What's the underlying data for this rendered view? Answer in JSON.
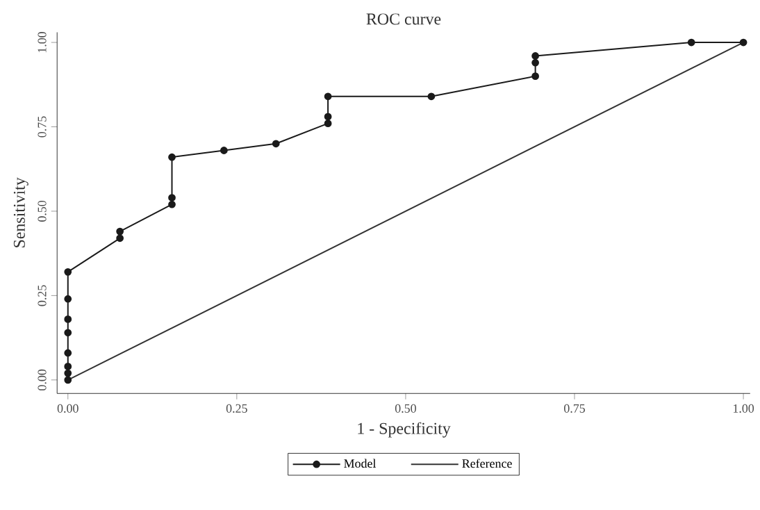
{
  "chart_data": {
    "type": "line",
    "title": "ROC curve",
    "xlabel": "1 - Specificity",
    "ylabel": "Sensitivity",
    "xlim": [
      -0.016,
      1.01
    ],
    "ylim": [
      -0.04,
      1.03
    ],
    "xticks": [
      {
        "value": 0,
        "label": "0.00"
      },
      {
        "value": 0.25,
        "label": "0.25"
      },
      {
        "value": 0.5,
        "label": "0.50"
      },
      {
        "value": 0.75,
        "label": "0.75"
      },
      {
        "value": 1,
        "label": "1.00"
      }
    ],
    "yticks": [
      {
        "value": 0,
        "label": "0.00"
      },
      {
        "value": 0.25,
        "label": "0.25"
      },
      {
        "value": 0.5,
        "label": "0.50"
      },
      {
        "value": 0.75,
        "label": "0.75"
      },
      {
        "value": 1,
        "label": "1.00"
      }
    ],
    "legend": "bottom",
    "grid": false,
    "series": [
      {
        "name": "Model",
        "color": "#1a1a1a",
        "marker": "circle",
        "x": [
          0,
          0,
          0,
          0,
          0,
          0,
          0,
          0,
          0.077,
          0.077,
          0.154,
          0.154,
          0.154,
          0.231,
          0.308,
          0.385,
          0.385,
          0.385,
          0.538,
          0.692,
          0.692,
          0.692,
          0.923,
          1
        ],
        "values": [
          0,
          0.02,
          0.04,
          0.08,
          0.14,
          0.18,
          0.24,
          0.32,
          0.42,
          0.44,
          0.52,
          0.54,
          0.66,
          0.68,
          0.7,
          0.76,
          0.78,
          0.84,
          0.84,
          0.9,
          0.94,
          0.96,
          1,
          1
        ]
      },
      {
        "name": "Reference",
        "color": "#333333",
        "marker": "none",
        "x": [
          0,
          0.5,
          1
        ],
        "values": [
          0,
          0.5,
          1
        ]
      }
    ]
  }
}
